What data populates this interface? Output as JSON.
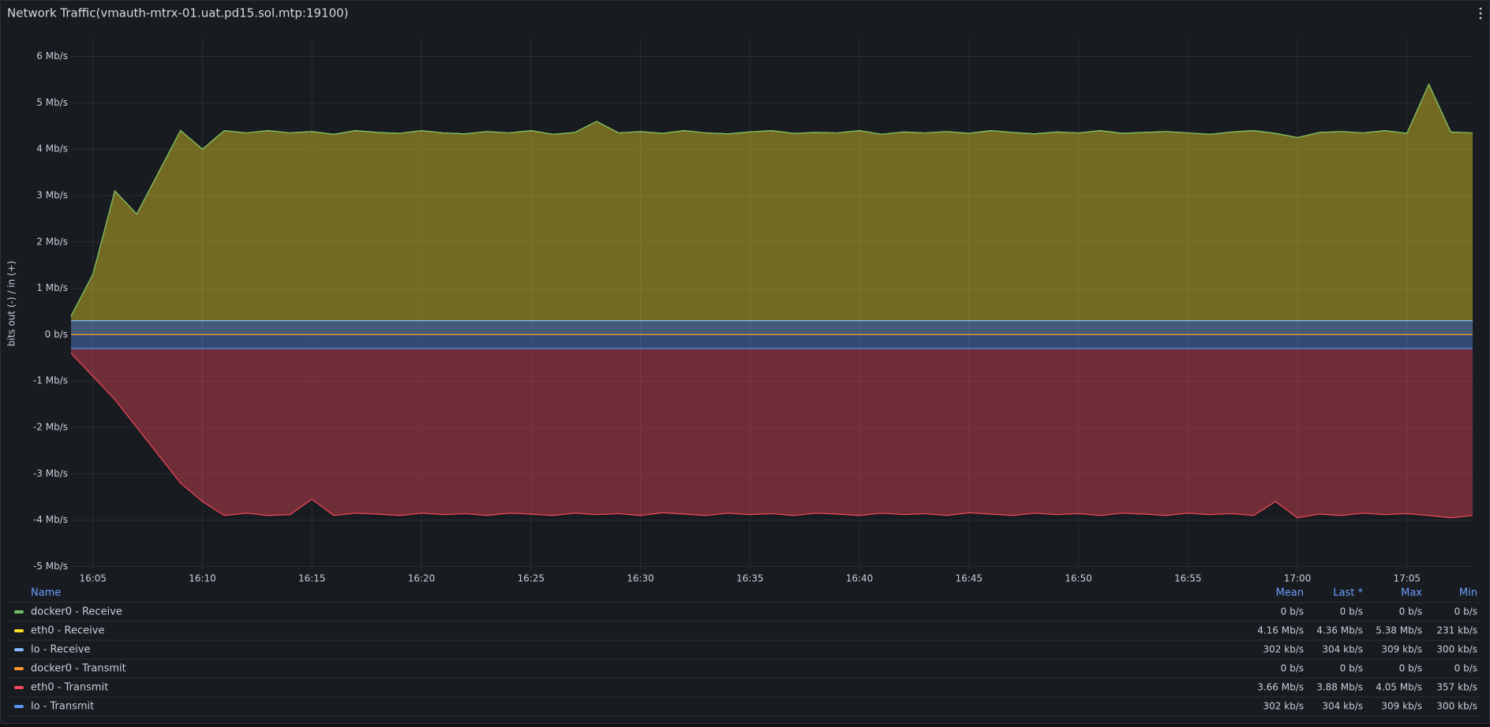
{
  "chart_data": {
    "type": "stacked-area",
    "title": "Network Traffic(vmauth-mtrx-01.uat.pd15.sol.mtp:19100)",
    "y_label": "bits out (-) / in (+)",
    "x": [
      "16:04",
      "16:05",
      "16:06",
      "16:07",
      "16:08",
      "16:09",
      "16:10",
      "16:11",
      "16:12",
      "16:13",
      "16:14",
      "16:15",
      "16:16",
      "16:17",
      "16:18",
      "16:19",
      "16:20",
      "16:21",
      "16:22",
      "16:23",
      "16:24",
      "16:25",
      "16:26",
      "16:27",
      "16:28",
      "16:29",
      "16:30",
      "16:31",
      "16:32",
      "16:33",
      "16:34",
      "16:35",
      "16:36",
      "16:37",
      "16:38",
      "16:39",
      "16:40",
      "16:41",
      "16:42",
      "16:43",
      "16:44",
      "16:45",
      "16:46",
      "16:47",
      "16:48",
      "16:49",
      "16:50",
      "16:51",
      "16:52",
      "16:53",
      "16:54",
      "16:55",
      "16:56",
      "16:57",
      "16:58",
      "16:59",
      "17:00",
      "17:01",
      "17:02",
      "17:03",
      "17:04",
      "17:05",
      "17:06",
      "17:07",
      "17:08"
    ],
    "xlim": [
      "16:04",
      "17:08"
    ],
    "xticks": [
      "16:05",
      "16:10",
      "16:15",
      "16:20",
      "16:25",
      "16:30",
      "16:35",
      "16:40",
      "16:45",
      "16:50",
      "16:55",
      "17:00",
      "17:05"
    ],
    "ylim": [
      -5.06,
      6.4
    ],
    "yticks": [
      {
        "value": 6,
        "label": "6 Mb/s"
      },
      {
        "value": 5,
        "label": "5 Mb/s"
      },
      {
        "value": 4,
        "label": "4 Mb/s"
      },
      {
        "value": 3,
        "label": "3 Mb/s"
      },
      {
        "value": 2,
        "label": "2 Mb/s"
      },
      {
        "value": 1,
        "label": "1 Mb/s"
      },
      {
        "value": 0,
        "label": "0 b/s"
      },
      {
        "value": -1,
        "label": "-1 Mb/s"
      },
      {
        "value": -2,
        "label": "-2 Mb/s"
      },
      {
        "value": -3,
        "label": "-3 Mb/s"
      },
      {
        "value": -4,
        "label": "-4 Mb/s"
      },
      {
        "value": -5,
        "label": "-5 Mb/s"
      }
    ],
    "grid": true,
    "series": [
      {
        "name": "docker0 - Receive",
        "color": "#73bf69",
        "values": [
          0,
          0,
          0,
          0,
          0,
          0,
          0,
          0,
          0,
          0,
          0,
          0,
          0,
          0,
          0,
          0,
          0,
          0,
          0,
          0,
          0,
          0,
          0,
          0,
          0,
          0,
          0,
          0,
          0,
          0,
          0,
          0,
          0,
          0,
          0,
          0,
          0,
          0,
          0,
          0,
          0,
          0,
          0,
          0,
          0,
          0,
          0,
          0,
          0,
          0,
          0,
          0,
          0,
          0,
          0,
          0,
          0,
          0,
          0,
          0,
          0,
          0,
          0,
          0,
          0
        ]
      },
      {
        "name": "eth0 - Receive",
        "color": "#fade2a",
        "values": [
          0.1,
          1.0,
          2.8,
          2.3,
          3.2,
          4.1,
          3.7,
          4.1,
          4.05,
          4.1,
          4.05,
          4.08,
          4.02,
          4.1,
          4.06,
          4.04,
          4.1,
          4.05,
          4.03,
          4.08,
          4.05,
          4.1,
          4.02,
          4.06,
          4.3,
          4.05,
          4.08,
          4.04,
          4.1,
          4.05,
          4.03,
          4.07,
          4.1,
          4.04,
          4.06,
          4.05,
          4.1,
          4.02,
          4.07,
          4.05,
          4.08,
          4.04,
          4.1,
          4.06,
          4.03,
          4.07,
          4.05,
          4.1,
          4.04,
          4.06,
          4.08,
          4.05,
          4.02,
          4.07,
          4.1,
          4.04,
          3.95,
          4.06,
          4.08,
          4.05,
          4.1,
          4.04,
          5.1,
          4.07,
          4.05
        ]
      },
      {
        "name": "lo - Receive",
        "color": "#8ab8ff",
        "values": [
          0.3,
          0.3,
          0.3,
          0.3,
          0.3,
          0.3,
          0.3,
          0.3,
          0.3,
          0.3,
          0.3,
          0.3,
          0.3,
          0.3,
          0.3,
          0.3,
          0.3,
          0.3,
          0.3,
          0.3,
          0.3,
          0.3,
          0.3,
          0.3,
          0.3,
          0.3,
          0.3,
          0.3,
          0.3,
          0.3,
          0.3,
          0.3,
          0.3,
          0.3,
          0.3,
          0.3,
          0.3,
          0.3,
          0.3,
          0.3,
          0.3,
          0.3,
          0.3,
          0.3,
          0.3,
          0.3,
          0.3,
          0.3,
          0.3,
          0.3,
          0.3,
          0.3,
          0.3,
          0.3,
          0.3,
          0.3,
          0.3,
          0.3,
          0.3,
          0.3,
          0.3,
          0.3,
          0.3,
          0.3,
          0.3
        ]
      },
      {
        "name": "docker0 - Transmit",
        "color": "#ff9830",
        "values": [
          0,
          0,
          0,
          0,
          0,
          0,
          0,
          0,
          0,
          0,
          0,
          0,
          0,
          0,
          0,
          0,
          0,
          0,
          0,
          0,
          0,
          0,
          0,
          0,
          0,
          0,
          0,
          0,
          0,
          0,
          0,
          0,
          0,
          0,
          0,
          0,
          0,
          0,
          0,
          0,
          0,
          0,
          0,
          0,
          0,
          0,
          0,
          0,
          0,
          0,
          0,
          0,
          0,
          0,
          0,
          0,
          0,
          0,
          0,
          0,
          0,
          0,
          0,
          0,
          0
        ]
      },
      {
        "name": "eth0 - Transmit",
        "color": "#f2495c",
        "values": [
          -0.1,
          -0.6,
          -1.1,
          -1.7,
          -2.3,
          -2.9,
          -3.3,
          -3.6,
          -3.55,
          -3.6,
          -3.58,
          -3.25,
          -3.6,
          -3.55,
          -3.57,
          -3.6,
          -3.55,
          -3.58,
          -3.56,
          -3.6,
          -3.55,
          -3.57,
          -3.6,
          -3.55,
          -3.58,
          -3.56,
          -3.6,
          -3.54,
          -3.57,
          -3.6,
          -3.55,
          -3.58,
          -3.56,
          -3.6,
          -3.55,
          -3.57,
          -3.6,
          -3.55,
          -3.58,
          -3.56,
          -3.6,
          -3.54,
          -3.57,
          -3.6,
          -3.55,
          -3.58,
          -3.56,
          -3.6,
          -3.55,
          -3.57,
          -3.6,
          -3.55,
          -3.58,
          -3.56,
          -3.6,
          -3.3,
          -3.65,
          -3.57,
          -3.6,
          -3.55,
          -3.58,
          -3.56,
          -3.6,
          -3.65,
          -3.6
        ]
      },
      {
        "name": "lo - Transmit",
        "color": "#5794f2",
        "values": [
          -0.3,
          -0.3,
          -0.3,
          -0.3,
          -0.3,
          -0.3,
          -0.3,
          -0.3,
          -0.3,
          -0.3,
          -0.3,
          -0.3,
          -0.3,
          -0.3,
          -0.3,
          -0.3,
          -0.3,
          -0.3,
          -0.3,
          -0.3,
          -0.3,
          -0.3,
          -0.3,
          -0.3,
          -0.3,
          -0.3,
          -0.3,
          -0.3,
          -0.3,
          -0.3,
          -0.3,
          -0.3,
          -0.3,
          -0.3,
          -0.3,
          -0.3,
          -0.3,
          -0.3,
          -0.3,
          -0.3,
          -0.3,
          -0.3,
          -0.3,
          -0.3,
          -0.3,
          -0.3,
          -0.3,
          -0.3,
          -0.3,
          -0.3,
          -0.3,
          -0.3,
          -0.3,
          -0.3,
          -0.3,
          -0.3,
          -0.3,
          -0.3,
          -0.3,
          -0.3,
          -0.3,
          -0.3,
          -0.3,
          -0.3,
          -0.3
        ]
      }
    ],
    "legend": {
      "columns": [
        "Name",
        "Mean",
        "Last *",
        "Max",
        "Min"
      ],
      "rows": [
        [
          "0 b/s",
          "0 b/s",
          "0 b/s",
          "0 b/s"
        ],
        [
          "4.16 Mb/s",
          "4.36 Mb/s",
          "5.38 Mb/s",
          "231 kb/s"
        ],
        [
          "302 kb/s",
          "304 kb/s",
          "309 kb/s",
          "300 kb/s"
        ],
        [
          "0 b/s",
          "0 b/s",
          "0 b/s",
          "0 b/s"
        ],
        [
          "3.66 Mb/s",
          "3.88 Mb/s",
          "4.05 Mb/s",
          "357 kb/s"
        ],
        [
          "302 kb/s",
          "304 kb/s",
          "309 kb/s",
          "300 kb/s"
        ]
      ]
    }
  }
}
